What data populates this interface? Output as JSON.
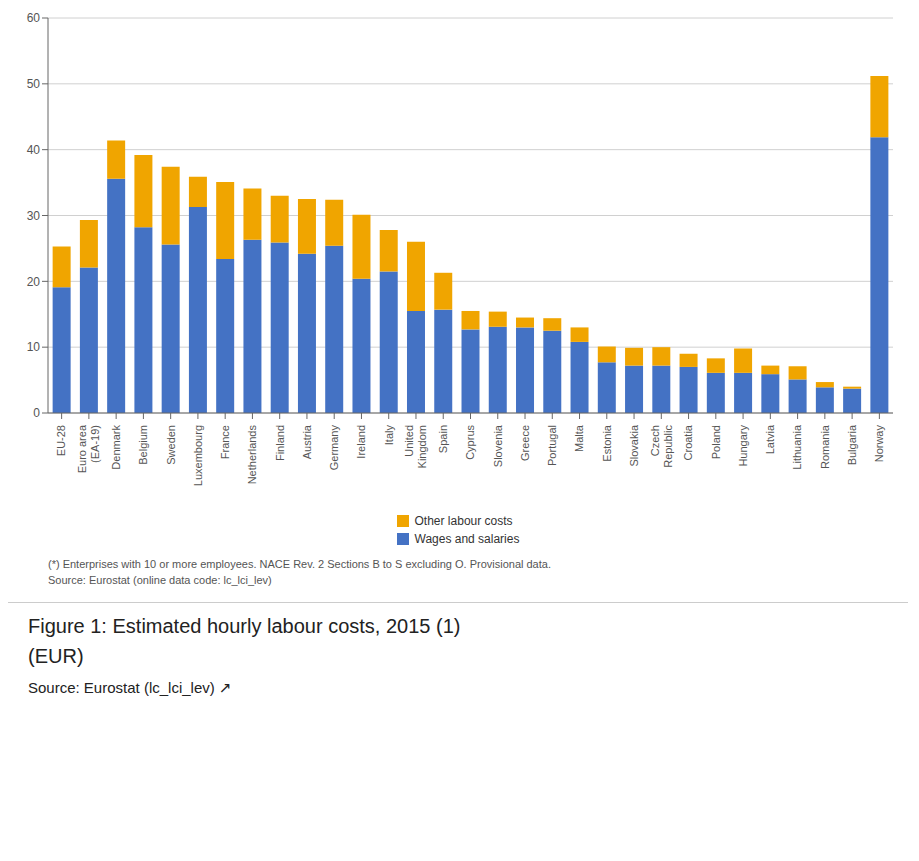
{
  "chart_data": {
    "type": "bar",
    "stacked": true,
    "title": "Figure 1: Estimated hourly labour costs, 2015 (1)",
    "subtitle": "(EUR)",
    "categories": [
      "EU-28",
      "Euro area\n(EA-19)",
      "Denmark",
      "Belgium",
      "Sweden",
      "Luxembourg",
      "France",
      "Netherlands",
      "Finland",
      "Austria",
      "Germany",
      "Ireland",
      "Italy",
      "United\nKingdom",
      "Spain",
      "Cyprus",
      "Slovenia",
      "Greece",
      "Portugal",
      "Malta",
      "Estonia",
      "Slovakia",
      "Czech\nRepublic",
      "Croatia",
      "Poland",
      "Hungary",
      "Latvia",
      "Lithuania",
      "Romania",
      "Bulgaria",
      "Norway"
    ],
    "series": [
      {
        "name": "Wages and salaries",
        "color": "#4472c4",
        "values": [
          19.1,
          22.1,
          35.6,
          28.2,
          25.6,
          31.3,
          23.4,
          26.3,
          25.9,
          24.2,
          25.4,
          20.4,
          21.5,
          15.5,
          15.7,
          12.7,
          13.1,
          13.0,
          12.5,
          10.8,
          7.7,
          7.2,
          7.2,
          7.0,
          6.1,
          6.1,
          5.9,
          5.1,
          3.9,
          3.7,
          41.9
        ]
      },
      {
        "name": "Other labour costs",
        "color": "#f0a500",
        "values": [
          6.2,
          7.2,
          5.8,
          11.0,
          11.8,
          4.6,
          11.7,
          7.8,
          7.1,
          8.3,
          7.0,
          9.7,
          6.3,
          10.5,
          5.6,
          2.8,
          2.3,
          1.5,
          1.9,
          2.2,
          2.4,
          2.7,
          2.8,
          2.0,
          2.2,
          3.7,
          1.3,
          2.0,
          0.8,
          0.3,
          9.3
        ]
      }
    ],
    "ylim": [
      0,
      60
    ],
    "yticks": [
      0,
      10,
      20,
      30,
      40,
      50,
      60
    ],
    "grid": true,
    "legend": "bottom",
    "annotations": [
      "(*) Enterprises with 10 or more employees. NACE Rev. 2 Sections B to S excluding O. Provisional data.",
      "Source: Eurostat (online data code: lc_lci_lev)",
      "Source: Eurostat (lc_lci_lev) ↗"
    ]
  }
}
